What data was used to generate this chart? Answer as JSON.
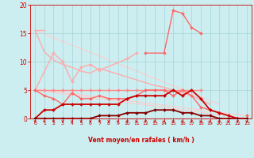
{
  "background_color": "#cceef0",
  "grid_color": "#aad8dc",
  "xlabel": "Vent moyen/en rafales ( km/h )",
  "xlabel_color": "#cc0000",
  "tick_color": "#cc0000",
  "xlim": [
    -0.5,
    23.5
  ],
  "ylim": [
    0,
    20
  ],
  "yticks": [
    0,
    5,
    10,
    15,
    20
  ],
  "xticks": [
    0,
    1,
    2,
    3,
    4,
    5,
    6,
    7,
    8,
    9,
    10,
    11,
    12,
    13,
    14,
    15,
    16,
    17,
    18,
    19,
    20,
    21,
    22,
    23
  ],
  "lines": [
    {
      "x": [
        0,
        1
      ],
      "y": [
        15.5,
        15.5
      ],
      "color": "#ffaaaa",
      "lw": 1.0,
      "marker": null,
      "zorder": 2
    },
    {
      "x": [
        0,
        1,
        2,
        3,
        4,
        5,
        6,
        7,
        8,
        9,
        10,
        11,
        12,
        13,
        14,
        15,
        16,
        17,
        18,
        19
      ],
      "y": [
        15.5,
        11.7,
        10.3,
        9.5,
        9.0,
        8.3,
        8.0,
        8.8,
        8.3,
        7.8,
        7.3,
        6.8,
        6.3,
        5.8,
        5.5,
        5.0,
        4.5,
        4.0,
        3.3,
        2.5
      ],
      "color": "#ffaaaa",
      "lw": 1.0,
      "marker": null,
      "zorder": 2
    },
    {
      "x": [
        0,
        20
      ],
      "y": [
        15.5,
        2.5
      ],
      "color": "#ffcccc",
      "lw": 0.8,
      "marker": null,
      "zorder": 1
    },
    {
      "x": [
        0,
        23
      ],
      "y": [
        5.2,
        0.5
      ],
      "color": "#ffcccc",
      "lw": 0.8,
      "marker": null,
      "zorder": 1
    },
    {
      "x": [
        0,
        23
      ],
      "y": [
        5.0,
        0.0
      ],
      "color": "#ffcccc",
      "lw": 0.8,
      "marker": null,
      "zorder": 1
    },
    {
      "x": [
        0,
        1,
        2,
        3,
        4,
        5,
        6,
        7,
        8,
        9,
        10,
        11,
        12,
        13,
        14,
        15,
        16,
        17,
        18,
        19,
        20,
        21,
        22,
        23
      ],
      "y": [
        5.0,
        5.0,
        5.0,
        5.0,
        5.0,
        5.0,
        5.0,
        5.0,
        5.0,
        5.0,
        5.0,
        5.0,
        5.0,
        5.0,
        5.0,
        5.0,
        5.0,
        5.0,
        5.0,
        null,
        null,
        null,
        null,
        null
      ],
      "color": "#ff8888",
      "lw": 1.0,
      "marker": "D",
      "ms": 2.0,
      "zorder": 3
    },
    {
      "x": [
        0,
        2,
        3,
        4,
        5,
        6,
        7,
        10,
        11
      ],
      "y": [
        5.0,
        11.5,
        10.0,
        6.5,
        9.0,
        9.5,
        8.5,
        10.5,
        11.5
      ],
      "color": "#ffaaaa",
      "lw": 1.0,
      "marker": "D",
      "ms": 2.0,
      "zorder": 3
    },
    {
      "x": [
        12,
        14,
        15,
        16,
        17,
        18
      ],
      "y": [
        11.5,
        11.5,
        19.0,
        18.5,
        16.0,
        15.0
      ],
      "color": "#ff6666",
      "lw": 1.0,
      "marker": "D",
      "ms": 2.0,
      "zorder": 3
    },
    {
      "x": [
        0,
        1,
        2,
        3,
        4,
        5,
        6,
        7,
        8,
        9,
        10,
        11,
        12,
        13,
        14,
        15,
        16,
        17,
        18,
        19,
        20,
        21,
        22,
        23
      ],
      "y": [
        5.0,
        4.0,
        3.5,
        2.5,
        4.5,
        3.5,
        3.5,
        4.0,
        3.5,
        3.5,
        3.5,
        4.0,
        5.0,
        5.0,
        5.0,
        4.0,
        5.0,
        4.0,
        2.0,
        1.5,
        1.0,
        null,
        null,
        0.5
      ],
      "color": "#ff6666",
      "lw": 1.0,
      "marker": "D",
      "ms": 2.0,
      "zorder": 3
    },
    {
      "x": [
        0,
        1,
        2,
        3,
        4,
        5,
        6,
        7,
        8,
        9,
        10,
        11,
        12,
        13,
        14,
        15,
        16,
        17,
        18,
        19,
        20,
        21,
        22,
        23
      ],
      "y": [
        0.0,
        1.5,
        1.5,
        2.5,
        2.5,
        2.5,
        2.5,
        2.5,
        2.5,
        2.5,
        3.5,
        4.0,
        4.0,
        4.0,
        4.0,
        5.0,
        4.0,
        5.0,
        3.5,
        1.5,
        1.0,
        0.5,
        0.0,
        0.0
      ],
      "color": "#cc0000",
      "lw": 1.3,
      "marker": "D",
      "ms": 2.0,
      "zorder": 4
    },
    {
      "x": [
        0,
        1,
        2,
        3,
        4,
        5,
        6,
        7,
        8,
        9,
        10,
        11,
        12,
        13,
        14,
        15,
        16,
        17,
        18,
        19,
        20,
        21,
        22,
        23
      ],
      "y": [
        0.0,
        0.0,
        0.0,
        0.0,
        0.0,
        0.0,
        0.0,
        0.5,
        0.5,
        0.5,
        1.0,
        1.0,
        1.0,
        1.5,
        1.5,
        1.5,
        1.0,
        1.0,
        0.5,
        0.5,
        0.0,
        0.0,
        0.0,
        0.0
      ],
      "color": "#880000",
      "lw": 1.3,
      "marker": "D",
      "ms": 2.0,
      "zorder": 4
    }
  ]
}
